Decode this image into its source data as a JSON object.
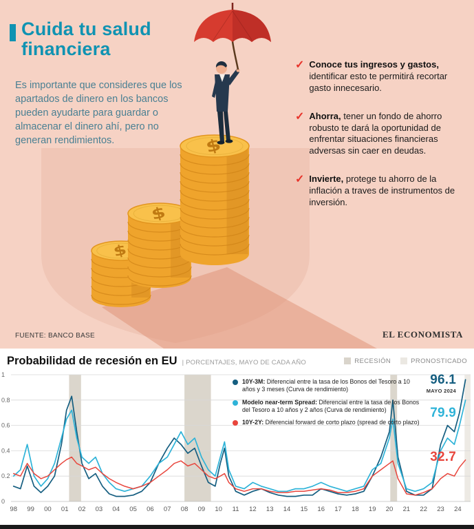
{
  "infographic": {
    "accent_color": "#1093b2",
    "title_line1": "Cuida tu salud",
    "title_line2": "financiera",
    "intro": "Es importante que consideres que los apartados de dinero en los bancos pueden ayudarte para guardar o almacenar el dinero ahí, pero no generan rendimientos.",
    "check_icon": "✓",
    "coin_symbol": "$",
    "tips": [
      {
        "lead": "Conoce tus ingresos y gastos,",
        "text": " identificar esto te permitirá recortar gasto innecesario."
      },
      {
        "lead": "Ahorra,",
        "text": " tener un fondo de ahorro robusto te dará la oportunidad de enfrentar situaciones financieras adversas sin caer en deudas."
      },
      {
        "lead": "Invierte,",
        "text": " protege tu ahorro de la inflación a traves de instrumentos de inversión."
      }
    ],
    "source": "FUENTE: BANCO BASE",
    "brand": "EL ECONOMISTA"
  },
  "chart": {
    "title": "Probabilidad de recesión en EU",
    "subtitle": "| PORCENTAJES, MAYO DE CADA AÑO",
    "legend_top": [
      {
        "label": "RECESIÓN",
        "color": "#d9d4cb"
      },
      {
        "label": "PRONOSTICADO",
        "color": "#ebe8e2"
      }
    ],
    "series_legend": [
      {
        "lead": "10Y-3M:",
        "text": " Diferencial entre la tasa de los Bonos del Tesoro a 10 años y 3 meses (Curva de rendimiento)"
      },
      {
        "lead": "Modelo near-term Spread:",
        "text": " Diferencial entre la tasa de los Bonos del Tesoro a 10 años y 2 años (Curva de rendimiento)"
      },
      {
        "lead": "10Y-2Y:",
        "text": " Diferencial forward de corto plazo (spread de corto plazo)"
      }
    ],
    "annotations": [
      {
        "value": "96.1",
        "sub": "MAYO 2024",
        "color": "#155e80"
      },
      {
        "value": "79.9",
        "sub": "",
        "color": "#2eb3d8"
      },
      {
        "value": "32.7",
        "sub": "",
        "color": "#e8453c"
      }
    ]
  },
  "chart_data": {
    "type": "line",
    "title": "Probabilidad de recesión en EU",
    "subtitle": "Porcentajes, mayo de cada año",
    "ylim": [
      0,
      1
    ],
    "x_range": [
      1997.85,
      2024.75
    ],
    "grid": true,
    "y_ticks": [
      {
        "v": 0,
        "label": "0"
      },
      {
        "v": 0.2,
        "label": "0.2"
      },
      {
        "v": 0.4,
        "label": "0.4"
      },
      {
        "v": 0.6,
        "label": "0.6"
      },
      {
        "v": 0.8,
        "label": "0.8"
      },
      {
        "v": 1,
        "label": "1"
      }
    ],
    "x_tick_labels": [
      "98",
      "99",
      "00",
      "01",
      "02",
      "03",
      "04",
      "05",
      "06",
      "07",
      "08",
      "09",
      "10",
      "11",
      "12",
      "13",
      "14",
      "15",
      "16",
      "17",
      "18",
      "19",
      "20",
      "21",
      "22",
      "23",
      "24"
    ],
    "band_color": "#dbd6cc",
    "forecast_band_color": "#edeae4",
    "recession_bands": [
      [
        2001.25,
        2001.95
      ],
      [
        2008.0,
        2009.55
      ],
      [
        2020.05,
        2020.45
      ]
    ],
    "forecast_bands": [
      [
        2024.4,
        2024.75
      ]
    ],
    "latest_values": {
      "10Y-3M": 96.1,
      "Modelo near-term Spread": 79.9,
      "10Y-2Y": 32.7,
      "as_of": "Mayo 2024"
    },
    "series": [
      {
        "name": "10Y-3M",
        "color": "#155e80",
        "width": 1.7,
        "points": [
          [
            1998,
            0.12
          ],
          [
            1998.4,
            0.1
          ],
          [
            1998.8,
            0.28
          ],
          [
            1999.2,
            0.12
          ],
          [
            1999.6,
            0.07
          ],
          [
            2000,
            0.12
          ],
          [
            2000.4,
            0.2
          ],
          [
            2000.8,
            0.45
          ],
          [
            2001.1,
            0.72
          ],
          [
            2001.4,
            0.83
          ],
          [
            2001.7,
            0.55
          ],
          [
            2002,
            0.3
          ],
          [
            2002.4,
            0.18
          ],
          [
            2002.8,
            0.22
          ],
          [
            2003.2,
            0.12
          ],
          [
            2003.6,
            0.06
          ],
          [
            2004,
            0.04
          ],
          [
            2004.5,
            0.04
          ],
          [
            2005,
            0.05
          ],
          [
            2005.5,
            0.08
          ],
          [
            2006,
            0.15
          ],
          [
            2006.5,
            0.3
          ],
          [
            2007,
            0.42
          ],
          [
            2007.4,
            0.5
          ],
          [
            2007.8,
            0.45
          ],
          [
            2008.2,
            0.38
          ],
          [
            2008.6,
            0.42
          ],
          [
            2009,
            0.28
          ],
          [
            2009.4,
            0.15
          ],
          [
            2009.8,
            0.12
          ],
          [
            2010.1,
            0.3
          ],
          [
            2010.35,
            0.42
          ],
          [
            2010.6,
            0.2
          ],
          [
            2011,
            0.08
          ],
          [
            2011.5,
            0.05
          ],
          [
            2012,
            0.08
          ],
          [
            2012.5,
            0.1
          ],
          [
            2013,
            0.07
          ],
          [
            2013.5,
            0.05
          ],
          [
            2014,
            0.04
          ],
          [
            2014.5,
            0.04
          ],
          [
            2015,
            0.05
          ],
          [
            2015.5,
            0.05
          ],
          [
            2016,
            0.1
          ],
          [
            2016.5,
            0.08
          ],
          [
            2017,
            0.06
          ],
          [
            2017.5,
            0.05
          ],
          [
            2018,
            0.06
          ],
          [
            2018.5,
            0.08
          ],
          [
            2019,
            0.2
          ],
          [
            2019.5,
            0.35
          ],
          [
            2020,
            0.55
          ],
          [
            2020.2,
            0.8
          ],
          [
            2020.5,
            0.35
          ],
          [
            2021,
            0.08
          ],
          [
            2021.5,
            0.05
          ],
          [
            2022,
            0.05
          ],
          [
            2022.5,
            0.1
          ],
          [
            2023,
            0.45
          ],
          [
            2023.4,
            0.6
          ],
          [
            2023.8,
            0.55
          ],
          [
            2024.1,
            0.7
          ],
          [
            2024.45,
            0.961
          ]
        ]
      },
      {
        "name": "Modelo near-term Spread",
        "color": "#2eb3d8",
        "width": 1.7,
        "points": [
          [
            1998,
            0.2
          ],
          [
            1998.4,
            0.25
          ],
          [
            1998.8,
            0.45
          ],
          [
            1999.2,
            0.2
          ],
          [
            1999.6,
            0.12
          ],
          [
            2000,
            0.18
          ],
          [
            2000.4,
            0.3
          ],
          [
            2000.8,
            0.5
          ],
          [
            2001.1,
            0.65
          ],
          [
            2001.4,
            0.72
          ],
          [
            2001.7,
            0.5
          ],
          [
            2002,
            0.35
          ],
          [
            2002.4,
            0.3
          ],
          [
            2002.8,
            0.35
          ],
          [
            2003.2,
            0.22
          ],
          [
            2003.6,
            0.15
          ],
          [
            2004,
            0.1
          ],
          [
            2004.5,
            0.08
          ],
          [
            2005,
            0.1
          ],
          [
            2005.5,
            0.12
          ],
          [
            2006,
            0.2
          ],
          [
            2006.5,
            0.3
          ],
          [
            2007,
            0.35
          ],
          [
            2007.4,
            0.45
          ],
          [
            2007.8,
            0.55
          ],
          [
            2008.2,
            0.45
          ],
          [
            2008.6,
            0.5
          ],
          [
            2009,
            0.35
          ],
          [
            2009.4,
            0.25
          ],
          [
            2009.8,
            0.2
          ],
          [
            2010.1,
            0.35
          ],
          [
            2010.35,
            0.47
          ],
          [
            2010.6,
            0.25
          ],
          [
            2011,
            0.12
          ],
          [
            2011.5,
            0.1
          ],
          [
            2012,
            0.15
          ],
          [
            2012.5,
            0.12
          ],
          [
            2013,
            0.1
          ],
          [
            2013.5,
            0.08
          ],
          [
            2014,
            0.08
          ],
          [
            2014.5,
            0.1
          ],
          [
            2015,
            0.1
          ],
          [
            2015.5,
            0.12
          ],
          [
            2016,
            0.15
          ],
          [
            2016.5,
            0.12
          ],
          [
            2017,
            0.1
          ],
          [
            2017.5,
            0.08
          ],
          [
            2018,
            0.1
          ],
          [
            2018.5,
            0.12
          ],
          [
            2019,
            0.25
          ],
          [
            2019.5,
            0.3
          ],
          [
            2020,
            0.5
          ],
          [
            2020.2,
            0.65
          ],
          [
            2020.5,
            0.3
          ],
          [
            2021,
            0.1
          ],
          [
            2021.5,
            0.08
          ],
          [
            2022,
            0.1
          ],
          [
            2022.5,
            0.15
          ],
          [
            2023,
            0.4
          ],
          [
            2023.4,
            0.5
          ],
          [
            2023.8,
            0.45
          ],
          [
            2024.1,
            0.6
          ],
          [
            2024.45,
            0.799
          ]
        ]
      },
      {
        "name": "10Y-2Y",
        "color": "#e8453c",
        "width": 1.5,
        "points": [
          [
            1998,
            0.22
          ],
          [
            1998.4,
            0.2
          ],
          [
            1998.8,
            0.3
          ],
          [
            1999.2,
            0.22
          ],
          [
            1999.6,
            0.18
          ],
          [
            2000,
            0.2
          ],
          [
            2000.4,
            0.25
          ],
          [
            2000.8,
            0.3
          ],
          [
            2001.1,
            0.33
          ],
          [
            2001.4,
            0.35
          ],
          [
            2001.7,
            0.3
          ],
          [
            2002,
            0.28
          ],
          [
            2002.4,
            0.25
          ],
          [
            2002.8,
            0.27
          ],
          [
            2003.2,
            0.22
          ],
          [
            2003.6,
            0.18
          ],
          [
            2004,
            0.15
          ],
          [
            2004.5,
            0.12
          ],
          [
            2005,
            0.1
          ],
          [
            2005.5,
            0.12
          ],
          [
            2006,
            0.15
          ],
          [
            2006.5,
            0.2
          ],
          [
            2007,
            0.25
          ],
          [
            2007.4,
            0.3
          ],
          [
            2007.8,
            0.32
          ],
          [
            2008.2,
            0.28
          ],
          [
            2008.6,
            0.3
          ],
          [
            2009,
            0.25
          ],
          [
            2009.4,
            0.2
          ],
          [
            2009.8,
            0.18
          ],
          [
            2010.1,
            0.2
          ],
          [
            2010.35,
            0.22
          ],
          [
            2010.6,
            0.15
          ],
          [
            2011,
            0.1
          ],
          [
            2011.5,
            0.08
          ],
          [
            2012,
            0.1
          ],
          [
            2012.5,
            0.1
          ],
          [
            2013,
            0.08
          ],
          [
            2013.5,
            0.07
          ],
          [
            2014,
            0.07
          ],
          [
            2014.5,
            0.08
          ],
          [
            2015,
            0.08
          ],
          [
            2015.5,
            0.09
          ],
          [
            2016,
            0.1
          ],
          [
            2016.5,
            0.09
          ],
          [
            2017,
            0.07
          ],
          [
            2017.5,
            0.07
          ],
          [
            2018,
            0.08
          ],
          [
            2018.5,
            0.1
          ],
          [
            2019,
            0.2
          ],
          [
            2019.5,
            0.25
          ],
          [
            2020,
            0.3
          ],
          [
            2020.2,
            0.32
          ],
          [
            2020.5,
            0.18
          ],
          [
            2021,
            0.06
          ],
          [
            2021.5,
            0.05
          ],
          [
            2022,
            0.07
          ],
          [
            2022.5,
            0.1
          ],
          [
            2023,
            0.18
          ],
          [
            2023.4,
            0.22
          ],
          [
            2023.8,
            0.2
          ],
          [
            2024.1,
            0.27
          ],
          [
            2024.45,
            0.327
          ]
        ]
      }
    ]
  }
}
